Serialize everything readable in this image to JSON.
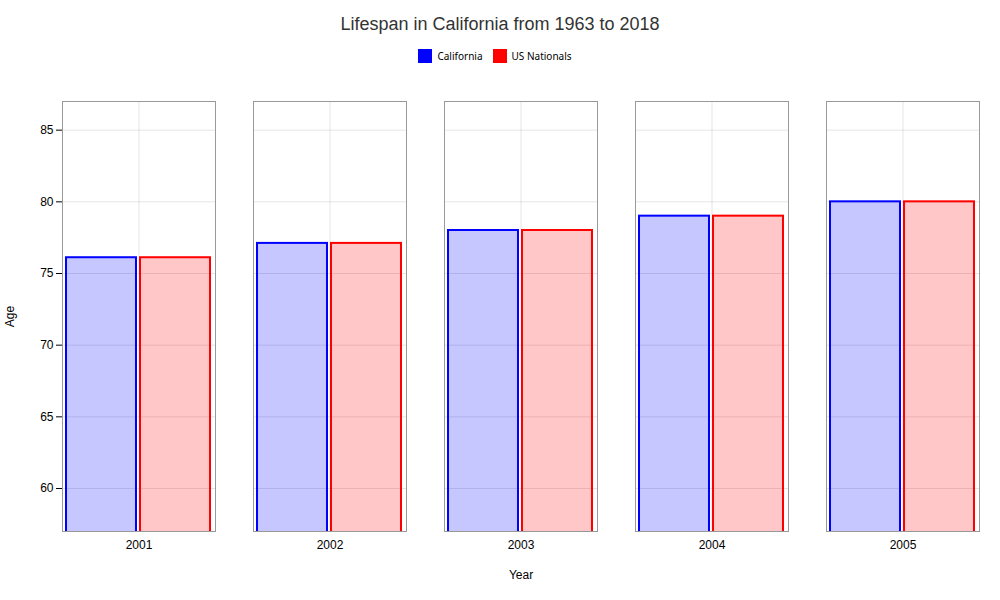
{
  "chart_data": {
    "type": "bar",
    "title": "Lifespan in California from 1963 to 2018",
    "x_label": "Year",
    "y_label": "Age",
    "categories": [
      "2001",
      "2002",
      "2003",
      "2004",
      "2005"
    ],
    "series": [
      {
        "name": "California",
        "color": "#0000ff",
        "values": [
          76.1,
          77.1,
          78.0,
          79.0,
          80.0
        ]
      },
      {
        "name": "US Nationals",
        "color": "#ff0000",
        "values": [
          76.1,
          77.1,
          78.0,
          79.0,
          80.0
        ]
      }
    ],
    "ylim": [
      57,
      87
    ],
    "yticks": [
      60,
      65,
      70,
      75,
      80,
      85
    ],
    "grid": true,
    "legend": "top"
  }
}
